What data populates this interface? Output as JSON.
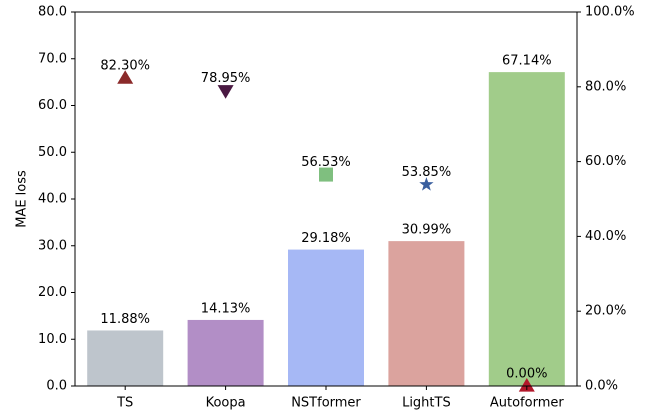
{
  "chart_data": {
    "type": "bar",
    "categories": [
      "TS",
      "Koopa",
      "NSTformer",
      "LightTS",
      "Autoformer"
    ],
    "ylabel": "MAE loss",
    "ylim": [
      0,
      80
    ],
    "yticks": [
      {
        "value": 0,
        "label": "0.0"
      },
      {
        "value": 10,
        "label": "10.0"
      },
      {
        "value": 20,
        "label": "20.0"
      },
      {
        "value": 30,
        "label": "30.0"
      },
      {
        "value": 40,
        "label": "40.0"
      },
      {
        "value": 50,
        "label": "50.0"
      },
      {
        "value": 60,
        "label": "60.0"
      },
      {
        "value": 70,
        "label": "70.0"
      },
      {
        "value": 80,
        "label": "80.0"
      }
    ],
    "y2lim": [
      0,
      100
    ],
    "y2ticks": [
      {
        "value": 0,
        "label": "0.0%"
      },
      {
        "value": 20,
        "label": "20.0%"
      },
      {
        "value": 40,
        "label": "40.0%"
      },
      {
        "value": 60,
        "label": "60.0%"
      },
      {
        "value": 80,
        "label": "80.0%"
      },
      {
        "value": 100,
        "label": "100.0%"
      }
    ],
    "series": [
      {
        "type": "bar",
        "axis": "y",
        "colors": [
          "#bec5cc",
          "#b28ec6",
          "#a6b8f5",
          "#dba39e",
          "#a1cc8a"
        ],
        "values": [
          11.88,
          14.13,
          29.18,
          30.99,
          67.14
        ],
        "value_labels": [
          "11.88%",
          "14.13%",
          "29.18%",
          "30.99%",
          "67.14%"
        ]
      },
      {
        "type": "scatter",
        "axis": "y2",
        "colors": [
          "#8b2a2a",
          "#4a1942",
          "#7fbf7f",
          "#3a5f9f",
          "#b2182b"
        ],
        "markers": [
          "^",
          "v",
          "s",
          "*",
          "^"
        ],
        "values": [
          82.3,
          78.95,
          56.53,
          53.85,
          0.0
        ],
        "value_labels": [
          "82.30%",
          "78.95%",
          "56.53%",
          "53.85%",
          "0.00%"
        ]
      }
    ]
  }
}
